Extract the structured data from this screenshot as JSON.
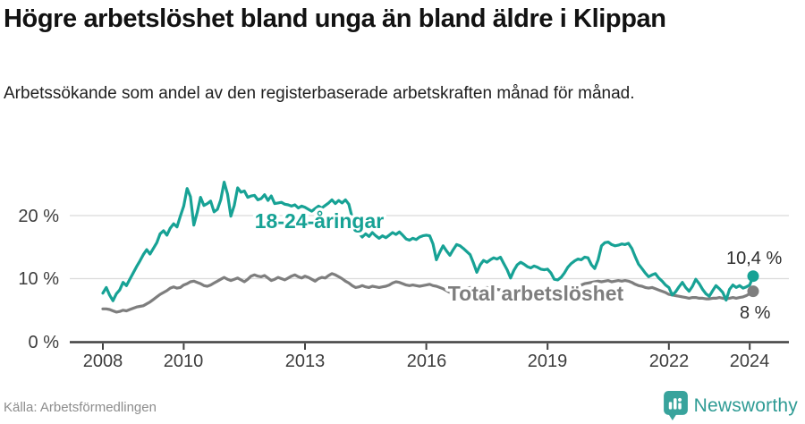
{
  "header": {
    "title": "Högre arbetslöshet bland unga än bland äldre i Klippan",
    "subtitle": "Arbetssökande som andel av den registerbaserade arbetskraften månad för månad."
  },
  "footer": {
    "source": "Källa: Arbetsförmedlingen",
    "brand": "Newsworthy"
  },
  "colors": {
    "accent_teal": "#17a295",
    "line_gray": "#7e7e7e",
    "grid": "#dbdbdb",
    "axis": "#404040",
    "logo_teal": "#38a39c"
  },
  "chart_data": {
    "type": "line",
    "x_unit": "month",
    "x_range": [
      "2008-01",
      "2024-02"
    ],
    "x_tick_years": [
      2008,
      2010,
      2013,
      2016,
      2019,
      2022,
      2024
    ],
    "y_ticks": [
      {
        "value": 0,
        "label": "0 %"
      },
      {
        "value": 10,
        "label": "10 %"
      },
      {
        "value": 20,
        "label": "20 %"
      }
    ],
    "ylim": [
      0,
      27
    ],
    "grid": "horizontal",
    "legend_position": "inline",
    "series": [
      {
        "name": "Total arbetslöshet",
        "color": "#7e7e7e",
        "end_label": "8 %",
        "end_value": 8.0,
        "values": [
          5.2,
          5.2,
          5.1,
          4.9,
          4.7,
          4.8,
          5.0,
          4.9,
          5.1,
          5.3,
          5.5,
          5.6,
          5.7,
          6.0,
          6.3,
          6.7,
          7.1,
          7.5,
          7.8,
          8.1,
          8.5,
          8.7,
          8.5,
          8.6,
          9.0,
          9.2,
          9.5,
          9.6,
          9.4,
          9.2,
          8.9,
          8.8,
          9.0,
          9.3,
          9.6,
          9.9,
          10.2,
          9.9,
          9.7,
          9.9,
          10.1,
          9.8,
          9.5,
          9.9,
          10.4,
          10.6,
          10.4,
          10.3,
          10.5,
          10.1,
          9.7,
          9.9,
          10.2,
          10.0,
          9.8,
          10.1,
          10.4,
          10.6,
          10.3,
          10.1,
          10.4,
          10.2,
          9.9,
          9.6,
          10.0,
          10.2,
          10.1,
          10.5,
          10.8,
          10.6,
          10.3,
          10.0,
          9.6,
          9.3,
          8.9,
          8.6,
          8.7,
          8.9,
          8.7,
          8.6,
          8.8,
          8.7,
          8.6,
          8.7,
          8.8,
          9.0,
          9.3,
          9.5,
          9.4,
          9.2,
          9.0,
          8.9,
          9.0,
          8.9,
          8.8,
          8.9,
          9.0,
          9.1,
          8.9,
          8.8,
          8.6,
          8.4,
          8.1,
          7.8,
          7.9,
          8.2,
          8.4,
          8.5,
          8.5,
          8.6,
          8.4,
          8.3,
          8.4,
          8.5,
          8.6,
          8.5,
          8.4,
          8.3,
          8.2,
          8.2,
          8.2,
          8.1,
          8.0,
          8.0,
          8.1,
          8.2,
          8.2,
          8.1,
          8.0,
          8.1,
          8.2,
          8.2,
          8.3,
          8.2,
          8.2,
          8.3,
          8.4,
          8.4,
          8.5,
          8.5,
          8.6,
          8.8,
          9.0,
          9.2,
          9.3,
          9.4,
          9.5,
          9.6,
          9.5,
          9.6,
          9.7,
          9.5,
          9.6,
          9.7,
          9.6,
          9.7,
          9.6,
          9.4,
          9.1,
          8.9,
          8.8,
          8.6,
          8.5,
          8.6,
          8.4,
          8.2,
          8.0,
          7.8,
          7.5,
          7.4,
          7.3,
          7.2,
          7.1,
          7.0,
          6.9,
          7.0,
          7.0,
          6.9,
          6.9,
          6.8,
          6.8,
          6.9,
          6.9,
          7.0,
          6.9,
          6.8,
          6.9,
          7.0,
          6.9,
          7.0,
          7.1,
          7.3,
          7.6,
          8.0
        ]
      },
      {
        "name": "18-24-åringar",
        "color": "#17a295",
        "end_label": "10,4 %",
        "end_value": 10.4,
        "values": [
          7.7,
          8.6,
          7.4,
          6.5,
          7.6,
          8.2,
          9.4,
          8.9,
          9.9,
          10.9,
          11.9,
          12.8,
          13.8,
          14.6,
          13.9,
          14.8,
          15.7,
          17.1,
          17.6,
          16.9,
          18.0,
          18.7,
          18.2,
          19.9,
          21.5,
          24.3,
          23.0,
          18.5,
          20.5,
          22.9,
          21.6,
          21.9,
          22.3,
          20.6,
          21.0,
          22.5,
          25.3,
          23.4,
          19.9,
          21.6,
          24.4,
          23.7,
          23.9,
          22.9,
          23.1,
          23.2,
          22.5,
          22.7,
          23.3,
          22.4,
          23.1,
          21.9,
          22.0,
          22.1,
          21.8,
          21.7,
          21.5,
          21.7,
          21.2,
          21.5,
          21.3,
          21.0,
          20.7,
          21.1,
          21.5,
          21.2,
          21.6,
          22.0,
          22.5,
          21.9,
          22.4,
          22.0,
          22.5,
          21.8,
          19.7,
          18.3,
          17.2,
          16.6,
          17.1,
          16.7,
          17.3,
          16.8,
          16.4,
          16.8,
          16.5,
          16.9,
          17.3,
          17.0,
          17.4,
          16.9,
          16.3,
          16.1,
          16.4,
          16.2,
          16.6,
          16.8,
          16.9,
          16.8,
          15.5,
          13.0,
          14.2,
          15.2,
          14.4,
          13.7,
          14.6,
          15.4,
          15.2,
          14.8,
          14.3,
          13.8,
          12.5,
          11.0,
          12.2,
          12.9,
          12.6,
          13.0,
          13.3,
          13.1,
          13.4,
          12.4,
          11.4,
          10.1,
          11.3,
          12.2,
          12.6,
          12.3,
          11.9,
          11.7,
          12.0,
          11.8,
          11.5,
          11.4,
          11.5,
          10.9,
          9.9,
          9.8,
          10.2,
          10.9,
          11.8,
          12.4,
          12.8,
          13.1,
          13.0,
          13.4,
          13.3,
          12.2,
          11.6,
          13.0,
          15.2,
          15.7,
          15.8,
          15.4,
          15.2,
          15.3,
          15.5,
          15.4,
          15.6,
          14.8,
          13.5,
          12.3,
          11.6,
          10.9,
          10.3,
          10.6,
          10.8,
          10.1,
          9.6,
          9.0,
          8.6,
          7.4,
          7.9,
          8.7,
          9.4,
          8.6,
          8.0,
          8.8,
          9.9,
          9.2,
          8.3,
          7.6,
          7.2,
          8.1,
          8.9,
          8.4,
          7.8,
          6.6,
          8.3,
          9.0,
          8.6,
          8.9,
          8.5,
          8.7,
          9.0,
          10.4
        ]
      }
    ]
  }
}
